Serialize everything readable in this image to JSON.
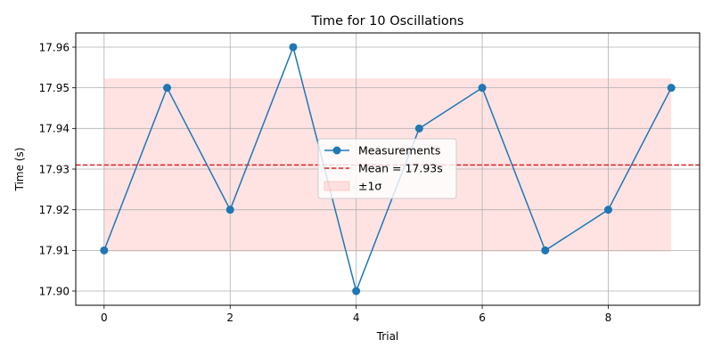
{
  "chart_data": {
    "type": "line",
    "title": "Time for 10 Oscillations",
    "xlabel": "Trial",
    "ylabel": "Time (s)",
    "x": [
      0,
      1,
      2,
      3,
      4,
      5,
      6,
      7,
      8,
      9
    ],
    "xlim": [
      -0.45,
      9.45
    ],
    "ylim": [
      17.8965,
      17.9635
    ],
    "xticks": [
      0,
      2,
      4,
      6,
      8
    ],
    "xtick_labels": [
      "0",
      "2",
      "4",
      "6",
      "8"
    ],
    "yticks": [
      17.9,
      17.91,
      17.92,
      17.93,
      17.94,
      17.95,
      17.96
    ],
    "ytick_labels": [
      "17.90",
      "17.91",
      "17.92",
      "17.93",
      "17.94",
      "17.95",
      "17.96"
    ],
    "grid": true,
    "legend_position": "center",
    "series": [
      {
        "name": "Measurements",
        "color": "#1f77b4",
        "marker": "circle",
        "values": [
          17.91,
          17.95,
          17.92,
          17.96,
          17.9,
          17.94,
          17.95,
          17.91,
          17.92,
          17.95
        ]
      }
    ],
    "mean_line": {
      "label": "Mean = 17.93s",
      "value": 17.931,
      "color": "#d62728",
      "style": "dashed"
    },
    "std_band": {
      "label": "±1σ",
      "lower": 17.9097,
      "upper": 17.9523,
      "x_range": [
        0,
        9
      ],
      "color": "#ffc0c0"
    }
  }
}
